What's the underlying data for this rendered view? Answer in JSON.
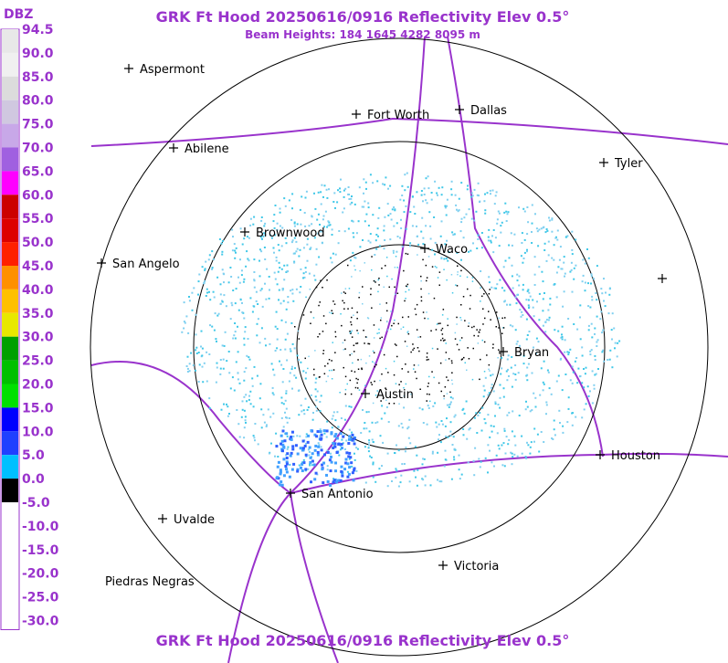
{
  "header": {
    "title": "GRK Ft Hood 20250616/0916 Reflectivity Elev 0.5°",
    "subtitle": "Beam Heights: 184 1645 4282 8095 m"
  },
  "footer": {
    "title": "GRK Ft Hood 20250616/0916 Reflectivity Elev 0.5°"
  },
  "scale": {
    "unit": "DBZ",
    "labels": [
      "94.5",
      "90.0",
      "85.0",
      "80.0",
      "75.0",
      "70.0",
      "65.0",
      "60.0",
      "55.0",
      "50.0",
      "45.0",
      "40.0",
      "35.0",
      "30.0",
      "25.0",
      "20.0",
      "15.0",
      "10.0",
      "5.0",
      "0.0",
      "-5.0",
      "-10.0",
      "-15.0",
      "-20.0",
      "-25.0",
      "-30.0"
    ]
  },
  "cities": [
    "Aspermont",
    "Abilene",
    "Fort Worth",
    "Dallas",
    "Tyler",
    "Brownwood",
    "Waco",
    "San Angelo",
    "Bryan",
    "Austin",
    "Houston",
    "San Antonio",
    "Uvalde",
    "Victoria",
    "Piedras Negras"
  ]
}
